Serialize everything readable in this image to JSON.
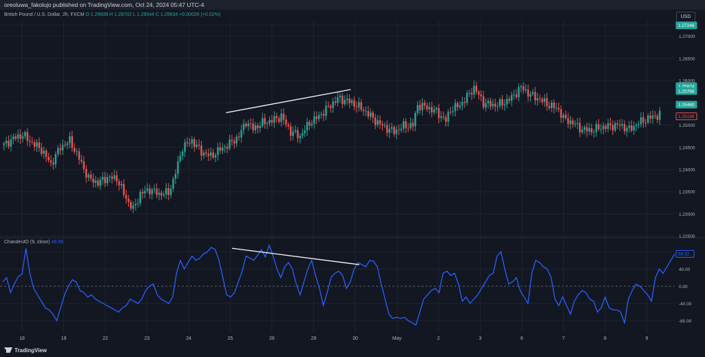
{
  "header": {
    "publish_text": "oreoluwa_fakolujo published on TradingView.com, Oct 24, 2024 05:47 UTC-4",
    "symbol_text": "British Pound / U.S. Dollar, 2h, FXCM",
    "ohlc": "O 1.29608  H 1.29702  L 1.29544  C 1.29634  +0.00026 (+0.02%)",
    "currency": "USD"
  },
  "indicator": {
    "label": "ChandeMO (9, close)",
    "value": "48.56"
  },
  "footer": {
    "brand": "TradingView"
  },
  "colors": {
    "up": "#26a69a",
    "down": "#ef5350",
    "cmo": "#2962ff",
    "background": "#131722",
    "grid": "#1f232e",
    "trendline": "#ffffff"
  },
  "chart_data": [
    {
      "type": "candlestick",
      "title": "British Pound / U.S. Dollar, 2h, FXCM",
      "y_ticks": [
        "1.27246",
        "1.27000",
        "1.26500",
        "1.26000",
        "1.25500",
        "1.25000",
        "1.24500",
        "1.24000",
        "1.23500",
        "1.23000",
        "1.22500"
      ],
      "ylim": [
        1.2248,
        1.2735
      ],
      "x_ticks": [
        "18",
        "19",
        "22",
        "23",
        "24",
        "25",
        "26",
        "29",
        "30",
        "May",
        "2",
        "3",
        "6",
        "7",
        "8",
        "9"
      ],
      "price_badges": [
        {
          "label": "1.27246",
          "value": 1.27246,
          "color": "#26a69a"
        },
        {
          "label": "1.25874",
          "value": 1.25874,
          "color": "#26a69a"
        },
        {
          "label": "1.25768",
          "value": 1.25768,
          "color": "#26a69a"
        },
        {
          "label": "1.25460",
          "value": 1.2546,
          "color": "#26a69a"
        },
        {
          "label": "1.25198",
          "value": 1.25198,
          "color": "#ef5350"
        }
      ],
      "close_path": [
        [
          0,
          1.2455
        ],
        [
          4,
          1.247
        ],
        [
          8,
          1.2478
        ],
        [
          12,
          1.246
        ],
        [
          16,
          1.2445
        ],
        [
          20,
          1.2412
        ],
        [
          24,
          1.245
        ],
        [
          28,
          1.2465
        ],
        [
          32,
          1.2425
        ],
        [
          36,
          1.238
        ],
        [
          40,
          1.237
        ],
        [
          44,
          1.2382
        ],
        [
          48,
          1.238
        ],
        [
          52,
          1.2335
        ],
        [
          55,
          1.231
        ],
        [
          58,
          1.2345
        ],
        [
          62,
          1.2355
        ],
        [
          66,
          1.2345
        ],
        [
          70,
          1.2348
        ],
        [
          72,
          1.2375
        ],
        [
          76,
          1.245
        ],
        [
          80,
          1.2465
        ],
        [
          84,
          1.244
        ],
        [
          88,
          1.243
        ],
        [
          92,
          1.2445
        ],
        [
          96,
          1.2458
        ],
        [
          100,
          1.2475
        ],
        [
          103,
          1.2508
        ],
        [
          106,
          1.2492
        ],
        [
          110,
          1.2505
        ],
        [
          114,
          1.251
        ],
        [
          118,
          1.252
        ],
        [
          122,
          1.2485
        ],
        [
          126,
          1.2475
        ],
        [
          130,
          1.2505
        ],
        [
          134,
          1.252
        ],
        [
          138,
          1.254
        ],
        [
          142,
          1.256
        ],
        [
          146,
          1.2555
        ],
        [
          150,
          1.2545
        ],
        [
          154,
          1.253
        ],
        [
          158,
          1.251
        ],
        [
          162,
          1.2495
        ],
        [
          166,
          1.2485
        ],
        [
          170,
          1.2498
        ],
        [
          174,
          1.25
        ],
        [
          176,
          1.2545
        ],
        [
          180,
          1.254
        ],
        [
          184,
          1.253
        ],
        [
          188,
          1.251
        ],
        [
          190,
          1.2535
        ],
        [
          194,
          1.2545
        ],
        [
          198,
          1.257
        ],
        [
          200,
          1.2585
        ],
        [
          204,
          1.255
        ],
        [
          208,
          1.2545
        ],
        [
          212,
          1.2548
        ],
        [
          216,
          1.2562
        ],
        [
          220,
          1.2585
        ],
        [
          224,
          1.2568
        ],
        [
          228,
          1.2558
        ],
        [
          232,
          1.2545
        ],
        [
          236,
          1.2535
        ],
        [
          238,
          1.2515
        ],
        [
          242,
          1.2505
        ],
        [
          246,
          1.249
        ],
        [
          250,
          1.2488
        ],
        [
          254,
          1.2495
        ],
        [
          258,
          1.2498
        ],
        [
          262,
          1.25
        ],
        [
          266,
          1.249
        ],
        [
          270,
          1.2505
        ],
        [
          274,
          1.2515
        ],
        [
          278,
          1.2522
        ],
        [
          279,
          1.2525
        ]
      ],
      "trendline": {
        "from": [
          95,
          1.2528
        ],
        "to": [
          148,
          1.258
        ]
      }
    },
    {
      "type": "line",
      "title": "ChandeMO (9, close)",
      "series_name": "ChandeMO",
      "y_ticks": [
        "80.00",
        "40.00",
        "0.00",
        "-40.00",
        "-80.00"
      ],
      "ylim": [
        -110,
        98
      ],
      "last_value_label": "58.32",
      "values": [
        10,
        20,
        -15,
        5,
        22,
        28,
        88,
        30,
        -5,
        -20,
        -35,
        -50,
        -55,
        -65,
        -80,
        -50,
        -20,
        0,
        15,
        10,
        -10,
        -15,
        -25,
        -20,
        -30,
        -35,
        -40,
        -45,
        -50,
        -55,
        -60,
        -50,
        -45,
        -30,
        -35,
        -40,
        -30,
        -10,
        0,
        5,
        -20,
        -30,
        -35,
        -40,
        -25,
        30,
        60,
        40,
        55,
        70,
        60,
        65,
        75,
        80,
        90,
        85,
        60,
        20,
        -20,
        -25,
        -15,
        10,
        35,
        70,
        65,
        60,
        72,
        85,
        68,
        95,
        70,
        40,
        20,
        45,
        55,
        40,
        5,
        -20,
        10,
        40,
        60,
        25,
        -5,
        -45,
        -15,
        20,
        30,
        35,
        25,
        -5,
        10,
        40,
        55,
        50,
        45,
        60,
        58,
        45,
        5,
        -30,
        -65,
        -75,
        -72,
        -75,
        -72,
        -80,
        -85,
        -90,
        -60,
        -30,
        -20,
        -10,
        -5,
        -15,
        30,
        35,
        25,
        30,
        5,
        -35,
        -25,
        -40,
        -30,
        -20,
        -5,
        10,
        25,
        30,
        70,
        80,
        40,
        5,
        10,
        20,
        -10,
        -25,
        -40,
        30,
        60,
        55,
        45,
        40,
        20,
        -30,
        -45,
        -25,
        -45,
        -65,
        -35,
        -20,
        -10,
        -15,
        -30,
        -35,
        -60,
        -50,
        -25,
        -50,
        -55,
        -55,
        -60,
        -85,
        -30,
        -10,
        5,
        0,
        -10,
        -20,
        -35,
        20,
        40,
        30,
        45,
        60,
        75
      ]
    }
  ]
}
